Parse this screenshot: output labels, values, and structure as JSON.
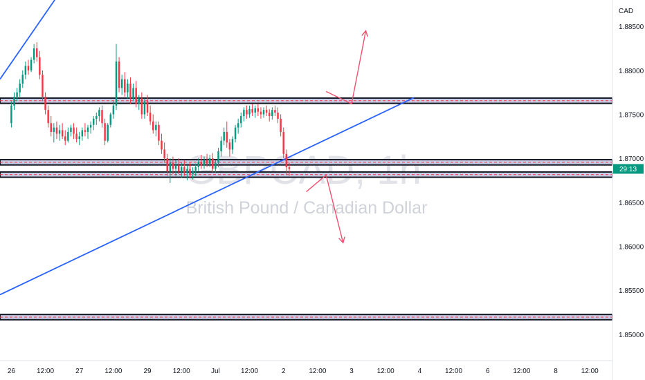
{
  "currency": "CAD",
  "watermark": {
    "symbol": "GBPCAD, 1h",
    "name": "British Pound / Canadian Dollar"
  },
  "current_price_label": "29:13",
  "colors": {
    "up": "#089981",
    "down": "#f23645",
    "trendline": "#2962ff",
    "zone_border": "#131722",
    "zone_fill": "#c9cce6",
    "zone_dash": "#f23645",
    "arrow": "#f0506e",
    "price_tag": "#089981"
  },
  "chart_data": {
    "type": "candlestick",
    "timeframe": "1h",
    "ylim": [
      1.847,
      1.888
    ],
    "y_ticks": [
      {
        "value": 1.885,
        "label": "1.88500"
      },
      {
        "value": 1.88,
        "label": "1.88000"
      },
      {
        "value": 1.875,
        "label": "1.87500"
      },
      {
        "value": 1.87,
        "label": "1.87000"
      },
      {
        "value": 1.865,
        "label": "1.86500"
      },
      {
        "value": 1.86,
        "label": "1.86000"
      },
      {
        "value": 1.855,
        "label": "1.85500"
      },
      {
        "value": 1.85,
        "label": "1.85000"
      }
    ],
    "x_ticks": [
      {
        "label": "26",
        "time": 0
      },
      {
        "label": "12:00",
        "time": 12
      },
      {
        "label": "27",
        "time": 24
      },
      {
        "label": "12:00",
        "time": 36
      },
      {
        "label": "29",
        "time": 48
      },
      {
        "label": "12:00",
        "time": 60
      },
      {
        "label": "Jul",
        "time": 72
      },
      {
        "label": "12:00",
        "time": 84
      },
      {
        "label": "2",
        "time": 96
      },
      {
        "label": "12:00",
        "time": 108
      },
      {
        "label": "3",
        "time": 120
      },
      {
        "label": "12:00",
        "time": 132
      },
      {
        "label": "4",
        "time": 144
      },
      {
        "label": "12:00",
        "time": 156
      },
      {
        "label": "6",
        "time": 168
      },
      {
        "label": "12:00",
        "time": 180
      },
      {
        "label": "8",
        "time": 192
      },
      {
        "label": "12:00",
        "time": 204
      }
    ],
    "series": [
      {
        "name": "GBPCAD",
        "ohlc": [
          [
            1.874,
            1.8765,
            1.8735,
            1.876
          ],
          [
            1.876,
            1.8775,
            1.8755,
            1.877
          ],
          [
            1.877,
            1.878,
            1.8765,
            1.8775
          ],
          [
            1.8775,
            1.879,
            1.877,
            1.8785
          ],
          [
            1.8785,
            1.88,
            1.878,
            1.8795
          ],
          [
            1.8795,
            1.881,
            1.879,
            1.8805
          ],
          [
            1.8805,
            1.8812,
            1.8795,
            1.88
          ],
          [
            1.88,
            1.8815,
            1.8798,
            1.8812
          ],
          [
            1.8812,
            1.883,
            1.8808,
            1.8825
          ],
          [
            1.8825,
            1.8832,
            1.881,
            1.8815
          ],
          [
            1.8815,
            1.8822,
            1.879,
            1.8795
          ],
          [
            1.8795,
            1.88,
            1.8765,
            1.877
          ],
          [
            1.877,
            1.8775,
            1.875,
            1.8755
          ],
          [
            1.8755,
            1.876,
            1.8735,
            1.874
          ],
          [
            1.874,
            1.8748,
            1.8725,
            1.873
          ],
          [
            1.873,
            1.874,
            1.8718,
            1.8735
          ],
          [
            1.8735,
            1.8742,
            1.8722,
            1.8728
          ],
          [
            1.8728,
            1.8738,
            1.872,
            1.8732
          ],
          [
            1.8732,
            1.874,
            1.8722,
            1.8725
          ],
          [
            1.8725,
            1.8732,
            1.8715,
            1.872
          ],
          [
            1.872,
            1.8735,
            1.8718,
            1.873
          ],
          [
            1.873,
            1.8738,
            1.8725,
            1.8735
          ],
          [
            1.8735,
            1.874,
            1.8722,
            1.8728
          ],
          [
            1.8728,
            1.8735,
            1.8718,
            1.8722
          ],
          [
            1.8722,
            1.873,
            1.8715,
            1.8725
          ],
          [
            1.8725,
            1.8735,
            1.872,
            1.8732
          ],
          [
            1.8732,
            1.874,
            1.8725,
            1.873
          ],
          [
            1.873,
            1.8738,
            1.8722,
            1.8735
          ],
          [
            1.8735,
            1.8742,
            1.8728,
            1.8738
          ],
          [
            1.8738,
            1.8748,
            1.8732,
            1.8745
          ],
          [
            1.8745,
            1.8752,
            1.8738,
            1.8748
          ],
          [
            1.8748,
            1.8758,
            1.8742,
            1.8755
          ],
          [
            1.8755,
            1.876,
            1.8735,
            1.874
          ],
          [
            1.874,
            1.8745,
            1.8715,
            1.872
          ],
          [
            1.872,
            1.874,
            1.8718,
            1.8738
          ],
          [
            1.8738,
            1.8752,
            1.8735,
            1.875
          ],
          [
            1.875,
            1.8765,
            1.8745,
            1.876
          ],
          [
            1.876,
            1.883,
            1.8755,
            1.881
          ],
          [
            1.881,
            1.8815,
            1.8775,
            1.878
          ],
          [
            1.878,
            1.8795,
            1.8772,
            1.879
          ],
          [
            1.879,
            1.8798,
            1.877,
            1.8775
          ],
          [
            1.8775,
            1.879,
            1.8768,
            1.8785
          ],
          [
            1.8785,
            1.8792,
            1.8762,
            1.8768
          ],
          [
            1.8768,
            1.8785,
            1.8765,
            1.878
          ],
          [
            1.878,
            1.8788,
            1.8758,
            1.8762
          ],
          [
            1.8762,
            1.8772,
            1.8755,
            1.8768
          ],
          [
            1.8768,
            1.8775,
            1.8745,
            1.875
          ],
          [
            1.875,
            1.8768,
            1.8745,
            1.8765
          ],
          [
            1.8765,
            1.8772,
            1.8748,
            1.8752
          ],
          [
            1.8752,
            1.876,
            1.8738,
            1.8742
          ],
          [
            1.8742,
            1.875,
            1.8728,
            1.8732
          ],
          [
            1.8732,
            1.8742,
            1.8725,
            1.8738
          ],
          [
            1.8738,
            1.8742,
            1.8715,
            1.872
          ],
          [
            1.872,
            1.8728,
            1.8705,
            1.871
          ],
          [
            1.871,
            1.8718,
            1.8695,
            1.87
          ],
          [
            1.87,
            1.8705,
            1.868,
            1.8685
          ],
          [
            1.8685,
            1.87,
            1.8672,
            1.8695
          ],
          [
            1.8695,
            1.8702,
            1.8682,
            1.8688
          ],
          [
            1.8688,
            1.8698,
            1.868,
            1.8692
          ],
          [
            1.8692,
            1.87,
            1.8682,
            1.8685
          ],
          [
            1.8685,
            1.8695,
            1.8678,
            1.869
          ],
          [
            1.869,
            1.8698,
            1.868,
            1.8684
          ],
          [
            1.8684,
            1.8692,
            1.8675,
            1.8688
          ],
          [
            1.8688,
            1.8695,
            1.8678,
            1.8682
          ],
          [
            1.8682,
            1.869,
            1.8676,
            1.8686
          ],
          [
            1.8686,
            1.8694,
            1.868,
            1.869
          ],
          [
            1.869,
            1.87,
            1.8685,
            1.8696
          ],
          [
            1.8696,
            1.8704,
            1.8688,
            1.8692
          ],
          [
            1.8692,
            1.8702,
            1.8688,
            1.8698
          ],
          [
            1.8698,
            1.8705,
            1.869,
            1.8694
          ],
          [
            1.8694,
            1.8704,
            1.869,
            1.87
          ],
          [
            1.87,
            1.8706,
            1.8684,
            1.8688
          ],
          [
            1.8688,
            1.8698,
            1.8684,
            1.8695
          ],
          [
            1.8695,
            1.8712,
            1.869,
            1.8708
          ],
          [
            1.8708,
            1.8725,
            1.8702,
            1.872
          ],
          [
            1.872,
            1.8735,
            1.8715,
            1.873
          ],
          [
            1.873,
            1.8742,
            1.8712,
            1.8718
          ],
          [
            1.8718,
            1.8722,
            1.8702,
            1.871
          ],
          [
            1.871,
            1.8725,
            1.8705,
            1.8722
          ],
          [
            1.8722,
            1.8738,
            1.8718,
            1.8735
          ],
          [
            1.8735,
            1.8745,
            1.8728,
            1.874
          ],
          [
            1.874,
            1.8752,
            1.8735,
            1.8748
          ],
          [
            1.8748,
            1.8758,
            1.8742,
            1.8755
          ],
          [
            1.8755,
            1.876,
            1.8745,
            1.875
          ],
          [
            1.875,
            1.876,
            1.8746,
            1.8756
          ],
          [
            1.8756,
            1.8762,
            1.8748,
            1.8752
          ],
          [
            1.8752,
            1.876,
            1.8746,
            1.8757
          ],
          [
            1.8757,
            1.8762,
            1.8748,
            1.8753
          ],
          [
            1.8753,
            1.8758,
            1.8745,
            1.875
          ],
          [
            1.875,
            1.8758,
            1.8746,
            1.8755
          ],
          [
            1.8755,
            1.876,
            1.8748,
            1.8752
          ],
          [
            1.8752,
            1.8756,
            1.8742,
            1.8748
          ],
          [
            1.8748,
            1.8758,
            1.8744,
            1.8755
          ],
          [
            1.8755,
            1.876,
            1.8748,
            1.8752
          ],
          [
            1.8752,
            1.8758,
            1.874,
            1.8745
          ],
          [
            1.8745,
            1.875,
            1.8725,
            1.873
          ],
          [
            1.873,
            1.8735,
            1.87,
            1.8705
          ],
          [
            1.8705,
            1.871,
            1.8682,
            1.869
          ],
          [
            1.869,
            1.8695,
            1.868,
            1.8688
          ]
        ]
      }
    ],
    "trendlines": [
      {
        "start": {
          "time": -4,
          "price": 1.879
        },
        "end": {
          "time": 26,
          "price": 1.893
        }
      },
      {
        "start": {
          "time": -4,
          "price": 1.8545
        },
        "end": {
          "time": 142,
          "price": 1.8769
        }
      }
    ],
    "zones": [
      {
        "top": 1.87685,
        "bottom": 1.87625,
        "time_start": -4,
        "time_end": 212
      },
      {
        "top": 1.86985,
        "bottom": 1.86925,
        "time_start": -4,
        "time_end": 212
      },
      {
        "top": 1.86845,
        "bottom": 1.86785,
        "time_start": -4,
        "time_end": 212
      },
      {
        "top": 1.85225,
        "bottom": 1.85165,
        "time_start": -4,
        "time_end": 212
      }
    ],
    "arrows": [
      {
        "from": {
          "time": 120,
          "price": 1.8762
        },
        "to": {
          "time": 125,
          "price": 1.8845
        },
        "hook": {
          "time": 111,
          "price": 1.8776
        }
      },
      {
        "from": {
          "time": 111,
          "price": 1.8681
        },
        "to": {
          "time": 117,
          "price": 1.8604
        },
        "hook": {
          "time": 104,
          "price": 1.8662
        }
      }
    ],
    "current_price": 1.8688,
    "grid": false,
    "legend": "none"
  }
}
